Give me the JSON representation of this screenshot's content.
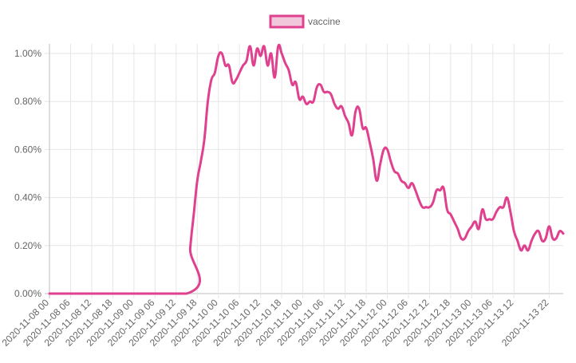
{
  "chart_data": {
    "type": "line",
    "legend_position": "top-center",
    "grid": true,
    "series": [
      {
        "name": "vaccine",
        "color": "#e0418f",
        "fill": "#f1c7dc",
        "values": [
          {
            "t": "2020-11-08 00",
            "y": 0.0
          },
          {
            "t": "2020-11-09 15",
            "y": 0.0
          },
          {
            "t": "2020-11-09 16",
            "y": 0.19
          },
          {
            "t": "2020-11-09 17",
            "y": 0.33
          },
          {
            "t": "2020-11-09 18",
            "y": 0.47
          },
          {
            "t": "2020-11-09 19",
            "y": 0.55
          },
          {
            "t": "2020-11-09 20",
            "y": 0.64
          },
          {
            "t": "2020-11-09 21",
            "y": 0.8
          },
          {
            "t": "2020-11-09 22",
            "y": 0.89
          },
          {
            "t": "2020-11-09 23",
            "y": 0.92
          },
          {
            "t": "2020-11-10 00",
            "y": 0.99
          },
          {
            "t": "2020-11-10 01",
            "y": 1.0
          },
          {
            "t": "2020-11-10 02",
            "y": 0.95
          },
          {
            "t": "2020-11-10 03",
            "y": 0.95
          },
          {
            "t": "2020-11-10 04",
            "y": 0.88
          },
          {
            "t": "2020-11-10 05",
            "y": 0.89
          },
          {
            "t": "2020-11-10 06",
            "y": 0.92
          },
          {
            "t": "2020-11-10 07",
            "y": 0.95
          },
          {
            "t": "2020-11-10 08",
            "y": 0.97
          },
          {
            "t": "2020-11-10 09",
            "y": 1.03
          },
          {
            "t": "2020-11-10 10",
            "y": 0.95
          },
          {
            "t": "2020-11-10 11",
            "y": 1.02
          },
          {
            "t": "2020-11-10 12",
            "y": 0.99
          },
          {
            "t": "2020-11-10 13",
            "y": 1.03
          },
          {
            "t": "2020-11-10 14",
            "y": 0.95
          },
          {
            "t": "2020-11-10 15",
            "y": 1.0
          },
          {
            "t": "2020-11-10 16",
            "y": 0.9
          },
          {
            "t": "2020-11-10 17",
            "y": 1.03
          },
          {
            "t": "2020-11-10 18",
            "y": 1.0
          },
          {
            "t": "2020-11-10 19",
            "y": 0.96
          },
          {
            "t": "2020-11-10 20",
            "y": 0.93
          },
          {
            "t": "2020-11-10 21",
            "y": 0.87
          },
          {
            "t": "2020-11-10 22",
            "y": 0.88
          },
          {
            "t": "2020-11-10 23",
            "y": 0.81
          },
          {
            "t": "2020-11-11 00",
            "y": 0.82
          },
          {
            "t": "2020-11-11 01",
            "y": 0.79
          },
          {
            "t": "2020-11-11 02",
            "y": 0.8
          },
          {
            "t": "2020-11-11 03",
            "y": 0.8
          },
          {
            "t": "2020-11-11 04",
            "y": 0.86
          },
          {
            "t": "2020-11-11 05",
            "y": 0.87
          },
          {
            "t": "2020-11-11 06",
            "y": 0.84
          },
          {
            "t": "2020-11-11 07",
            "y": 0.84
          },
          {
            "t": "2020-11-11 08",
            "y": 0.83
          },
          {
            "t": "2020-11-11 09",
            "y": 0.79
          },
          {
            "t": "2020-11-11 10",
            "y": 0.77
          },
          {
            "t": "2020-11-11 11",
            "y": 0.78
          },
          {
            "t": "2020-11-11 12",
            "y": 0.74
          },
          {
            "t": "2020-11-11 13",
            "y": 0.71
          },
          {
            "t": "2020-11-11 14",
            "y": 0.66
          },
          {
            "t": "2020-11-11 15",
            "y": 0.76
          },
          {
            "t": "2020-11-11 16",
            "y": 0.77
          },
          {
            "t": "2020-11-11 17",
            "y": 0.69
          },
          {
            "t": "2020-11-11 18",
            "y": 0.69
          },
          {
            "t": "2020-11-11 19",
            "y": 0.63
          },
          {
            "t": "2020-11-11 20",
            "y": 0.56
          },
          {
            "t": "2020-11-11 21",
            "y": 0.47
          },
          {
            "t": "2020-11-11 22",
            "y": 0.54
          },
          {
            "t": "2020-11-11 23",
            "y": 0.6
          },
          {
            "t": "2020-11-12 00",
            "y": 0.6
          },
          {
            "t": "2020-11-12 01",
            "y": 0.55
          },
          {
            "t": "2020-11-12 02",
            "y": 0.51
          },
          {
            "t": "2020-11-12 03",
            "y": 0.5
          },
          {
            "t": "2020-11-12 04",
            "y": 0.47
          },
          {
            "t": "2020-11-12 05",
            "y": 0.46
          },
          {
            "t": "2020-11-12 06",
            "y": 0.44
          },
          {
            "t": "2020-11-12 07",
            "y": 0.46
          },
          {
            "t": "2020-11-12 08",
            "y": 0.43
          },
          {
            "t": "2020-11-12 09",
            "y": 0.39
          },
          {
            "t": "2020-11-12 10",
            "y": 0.36
          },
          {
            "t": "2020-11-12 11",
            "y": 0.36
          },
          {
            "t": "2020-11-12 12",
            "y": 0.36
          },
          {
            "t": "2020-11-12 13",
            "y": 0.38
          },
          {
            "t": "2020-11-12 14",
            "y": 0.43
          },
          {
            "t": "2020-11-12 15",
            "y": 0.43
          },
          {
            "t": "2020-11-12 16",
            "y": 0.44
          },
          {
            "t": "2020-11-12 17",
            "y": 0.35
          },
          {
            "t": "2020-11-12 18",
            "y": 0.33
          },
          {
            "t": "2020-11-12 19",
            "y": 0.3
          },
          {
            "t": "2020-11-12 20",
            "y": 0.27
          },
          {
            "t": "2020-11-12 21",
            "y": 0.23
          },
          {
            "t": "2020-11-12 22",
            "y": 0.23
          },
          {
            "t": "2020-11-12 23",
            "y": 0.26
          },
          {
            "t": "2020-11-13 00",
            "y": 0.28
          },
          {
            "t": "2020-11-13 01",
            "y": 0.3
          },
          {
            "t": "2020-11-13 02",
            "y": 0.27
          },
          {
            "t": "2020-11-13 03",
            "y": 0.35
          },
          {
            "t": "2020-11-13 04",
            "y": 0.31
          },
          {
            "t": "2020-11-13 05",
            "y": 0.31
          },
          {
            "t": "2020-11-13 06",
            "y": 0.31
          },
          {
            "t": "2020-11-13 07",
            "y": 0.34
          },
          {
            "t": "2020-11-13 08",
            "y": 0.36
          },
          {
            "t": "2020-11-13 09",
            "y": 0.36
          },
          {
            "t": "2020-11-13 10",
            "y": 0.4
          },
          {
            "t": "2020-11-13 11",
            "y": 0.34
          },
          {
            "t": "2020-11-13 12",
            "y": 0.26
          },
          {
            "t": "2020-11-13 13",
            "y": 0.22
          },
          {
            "t": "2020-11-13 14",
            "y": 0.18
          },
          {
            "t": "2020-11-13 15",
            "y": 0.2
          },
          {
            "t": "2020-11-13 16",
            "y": 0.18
          },
          {
            "t": "2020-11-13 17",
            "y": 0.22
          },
          {
            "t": "2020-11-13 18",
            "y": 0.25
          },
          {
            "t": "2020-11-13 19",
            "y": 0.26
          },
          {
            "t": "2020-11-13 20",
            "y": 0.22
          },
          {
            "t": "2020-11-13 21",
            "y": 0.23
          },
          {
            "t": "2020-11-13 22",
            "y": 0.28
          },
          {
            "t": "2020-11-13 23",
            "y": 0.23
          },
          {
            "t": "2020-11-14 00",
            "y": 0.23
          },
          {
            "t": "2020-11-14 01",
            "y": 0.26
          },
          {
            "t": "2020-11-14 02",
            "y": 0.25
          }
        ]
      }
    ],
    "x_range": [
      "2020-11-08 00",
      "2020-11-14 02"
    ],
    "x_ticks": [
      "2020-11-08 00",
      "2020-11-08 06",
      "2020-11-08 12",
      "2020-11-08 18",
      "2020-11-09 00",
      "2020-11-09 06",
      "2020-11-09 12",
      "2020-11-09 18",
      "2020-11-10 00",
      "2020-11-10 06",
      "2020-11-10 12",
      "2020-11-10 18",
      "2020-11-11 00",
      "2020-11-11 06",
      "2020-11-11 12",
      "2020-11-11 18",
      "2020-11-12 00",
      "2020-11-12 06",
      "2020-11-12 12",
      "2020-11-12 18",
      "2020-11-13 00",
      "2020-11-13 06",
      "2020-11-13 12",
      "2020-11-13 22"
    ],
    "y_ticks": [
      {
        "value": 0.0,
        "label": "0.00%"
      },
      {
        "value": 0.2,
        "label": "0.20%"
      },
      {
        "value": 0.4,
        "label": "0.40%"
      },
      {
        "value": 0.6,
        "label": "0.60%"
      },
      {
        "value": 0.8,
        "label": "0.80%"
      },
      {
        "value": 1.0,
        "label": "1.00%"
      }
    ],
    "ylim": [
      0,
      1.04
    ]
  }
}
